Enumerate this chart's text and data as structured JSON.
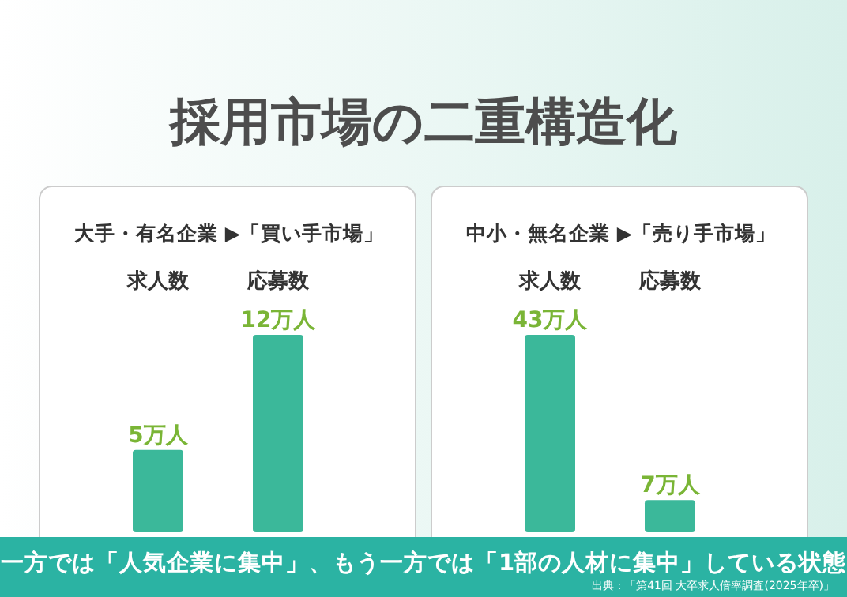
{
  "chart_data": [
    {
      "type": "bar",
      "title": "採用市場の二重構造化",
      "subtitle": "大手・有名企業 ▶「買い手市場」",
      "categories": [
        "求人数",
        "応募数"
      ],
      "values": [
        5,
        12
      ],
      "value_labels": [
        "5万人",
        "12万人"
      ],
      "color": "#3bb89a",
      "annotations": [
        "一方では「人気企業に集中」、もう一方では「1部の人材に集中」している状態",
        "出典：「第41回 大卒求人倍率調査(2025年卒)」"
      ]
    },
    {
      "type": "bar",
      "subtitle": "中小・無名企業 ▶「売り手市場」",
      "categories": [
        "求人数",
        "応募数"
      ],
      "values": [
        43,
        7
      ],
      "value_labels": [
        "43万人",
        "7万人"
      ],
      "color": "#3bb89a"
    }
  ]
}
